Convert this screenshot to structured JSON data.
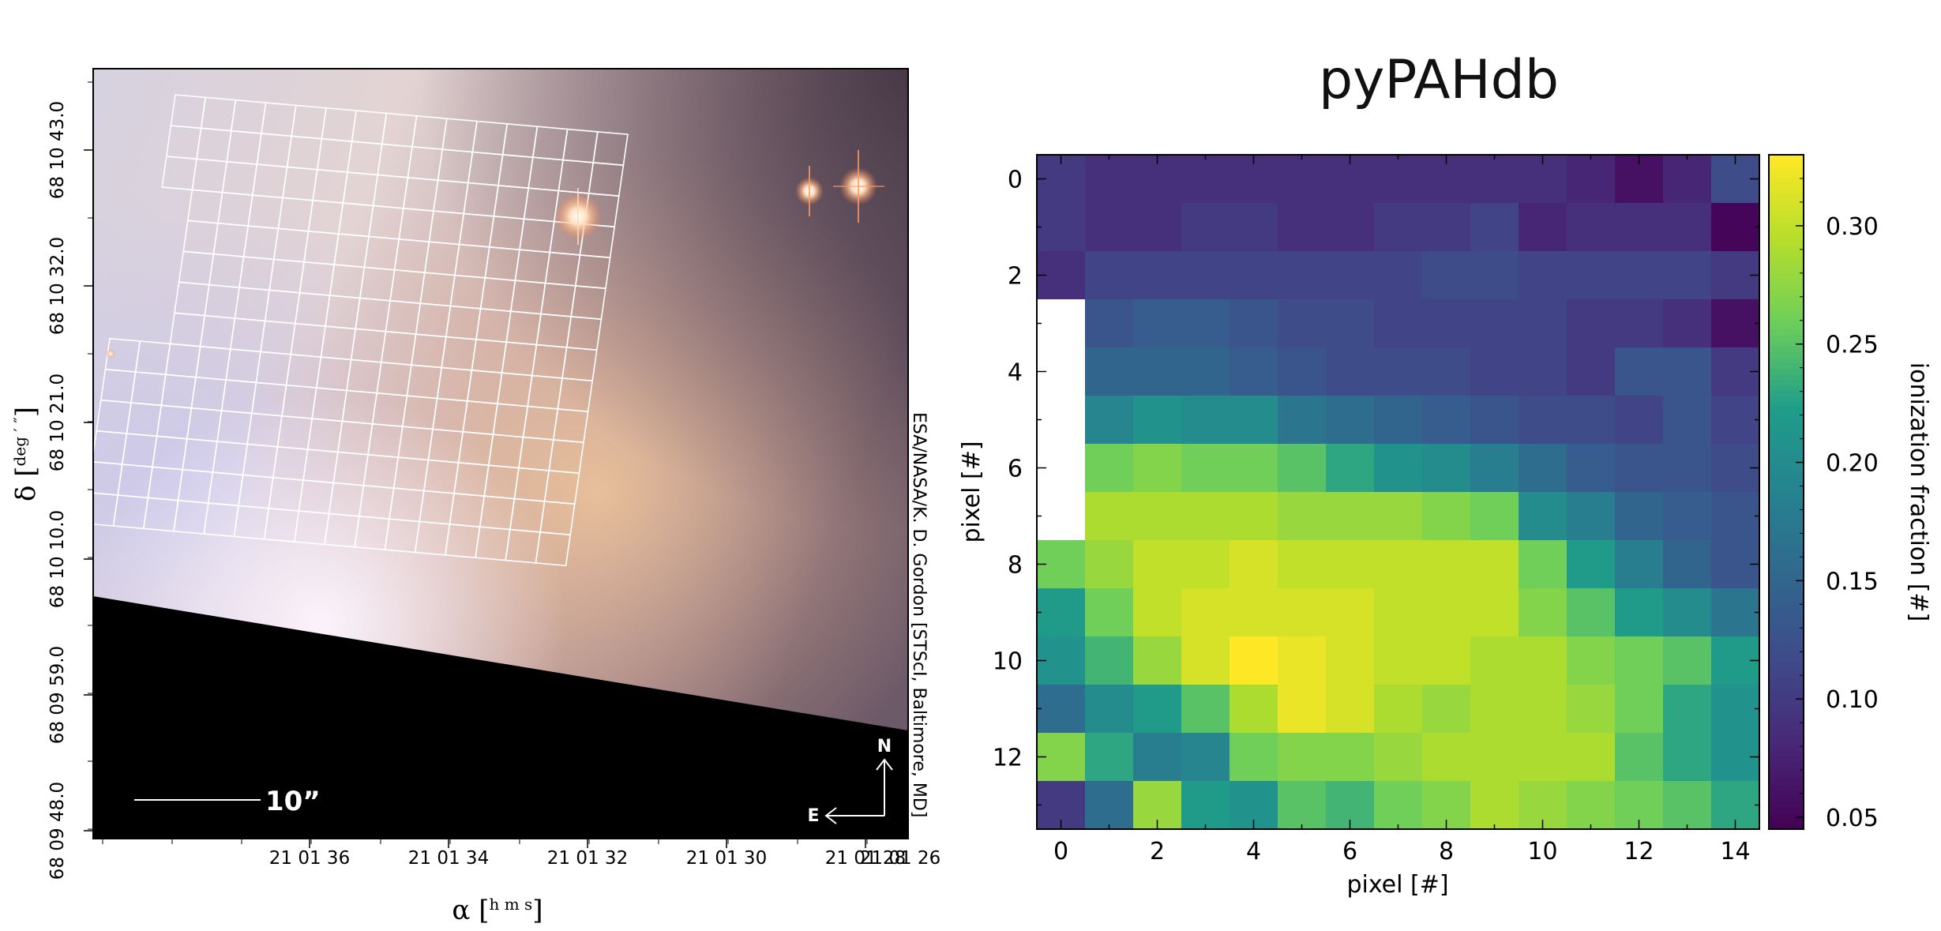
{
  "chart_data": [
    {
      "type": "image",
      "title": "",
      "xlabel": "α",
      "xlabel_units": "h m s",
      "ylabel": "δ",
      "ylabel_units": "deg ′ ″",
      "x_ticks": [
        "21 01 36",
        "21 01 34",
        "21 01 32",
        "21 01 30",
        "21 01 28",
        "21 01 26"
      ],
      "y_ticks": [
        "68 09 48.0",
        "68 09 59.0",
        "68 10 10.0",
        "68 10 21.0",
        "68 10 32.0",
        "68 10 43.0"
      ],
      "credit": "ESA/NASA/K. D. Gordon [STScI, Baltimore, MD]",
      "scale_bar_label": "10”",
      "compass": {
        "north": "N",
        "east": "E"
      },
      "overlay_grid": {
        "columns": 15,
        "rows": 14
      }
    },
    {
      "type": "heatmap",
      "title": "pyPAHdb",
      "xlabel": "pixel [#]",
      "ylabel": "pixel [#]",
      "x_ticks": [
        0,
        2,
        4,
        6,
        8,
        10,
        12,
        14
      ],
      "y_ticks": [
        0,
        2,
        4,
        6,
        8,
        10,
        12
      ],
      "xlim": [
        -0.5,
        14.5
      ],
      "ylim": [
        13.5,
        -0.5
      ],
      "colorbar": {
        "label": "ionization fraction [#]",
        "colormap": "viridis",
        "vmin": 0.045,
        "vmax": 0.33,
        "ticks": [
          0.05,
          0.1,
          0.15,
          0.2,
          0.25,
          0.3
        ],
        "tick_labels": [
          "0.05",
          "0.10",
          "0.15",
          "0.20",
          "0.25",
          "0.30"
        ]
      },
      "values": [
        [
          0.1,
          0.09,
          0.09,
          0.09,
          0.09,
          0.09,
          0.09,
          0.09,
          0.09,
          0.09,
          0.09,
          0.08,
          0.06,
          0.08,
          0.12
        ],
        [
          0.1,
          0.09,
          0.09,
          0.1,
          0.1,
          0.09,
          0.09,
          0.1,
          0.1,
          0.11,
          0.08,
          0.09,
          0.09,
          0.09,
          0.05
        ],
        [
          0.09,
          0.11,
          0.11,
          0.11,
          0.11,
          0.11,
          0.11,
          0.11,
          0.12,
          0.12,
          0.11,
          0.11,
          0.11,
          0.11,
          0.1
        ],
        [
          null,
          0.13,
          0.14,
          0.14,
          0.13,
          0.12,
          0.12,
          0.11,
          0.11,
          0.11,
          0.11,
          0.1,
          0.1,
          0.09,
          0.06
        ],
        [
          null,
          0.15,
          0.15,
          0.15,
          0.14,
          0.13,
          0.12,
          0.12,
          0.12,
          0.11,
          0.11,
          0.1,
          0.13,
          0.13,
          0.1
        ],
        [
          null,
          0.19,
          0.21,
          0.2,
          0.2,
          0.17,
          0.16,
          0.15,
          0.14,
          0.13,
          0.12,
          0.12,
          0.11,
          0.13,
          0.11
        ],
        [
          null,
          0.26,
          0.27,
          0.26,
          0.26,
          0.25,
          0.23,
          0.21,
          0.2,
          0.18,
          0.16,
          0.14,
          0.13,
          0.13,
          0.12
        ],
        [
          null,
          0.29,
          0.29,
          0.29,
          0.29,
          0.28,
          0.28,
          0.28,
          0.27,
          0.26,
          0.2,
          0.18,
          0.15,
          0.14,
          0.13
        ],
        [
          0.26,
          0.28,
          0.3,
          0.3,
          0.31,
          0.3,
          0.3,
          0.3,
          0.3,
          0.3,
          0.26,
          0.22,
          0.18,
          0.15,
          0.13
        ],
        [
          0.22,
          0.26,
          0.3,
          0.31,
          0.31,
          0.31,
          0.31,
          0.3,
          0.3,
          0.3,
          0.27,
          0.25,
          0.22,
          0.2,
          0.17
        ],
        [
          0.21,
          0.24,
          0.28,
          0.31,
          0.33,
          0.32,
          0.31,
          0.3,
          0.3,
          0.29,
          0.29,
          0.27,
          0.26,
          0.25,
          0.22
        ],
        [
          0.16,
          0.2,
          0.22,
          0.25,
          0.29,
          0.32,
          0.31,
          0.29,
          0.28,
          0.29,
          0.29,
          0.28,
          0.26,
          0.23,
          0.21
        ],
        [
          0.27,
          0.23,
          0.18,
          0.19,
          0.26,
          0.27,
          0.27,
          0.28,
          0.29,
          0.29,
          0.29,
          0.29,
          0.25,
          0.23,
          0.21
        ],
        [
          0.1,
          0.16,
          0.28,
          0.22,
          0.21,
          0.25,
          0.24,
          0.26,
          0.27,
          0.29,
          0.28,
          0.27,
          0.26,
          0.25,
          0.23
        ]
      ]
    }
  ]
}
